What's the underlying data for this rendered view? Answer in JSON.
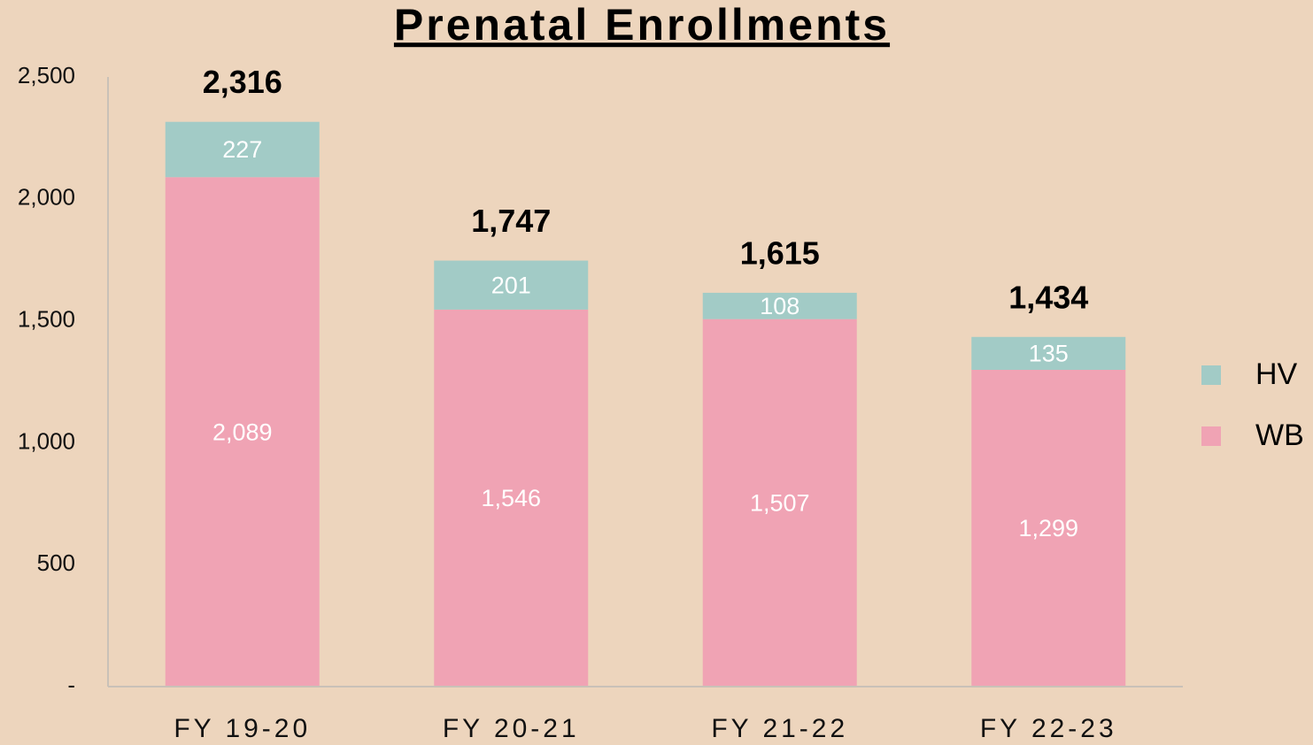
{
  "chart_data": {
    "type": "stacked_bar",
    "title": "Prenatal Enrollments",
    "categories": [
      "FY 19-20",
      "FY 20-21",
      "FY 21-22",
      "FY 22-23"
    ],
    "series": [
      {
        "name": "WB",
        "color": "#f0a3b4",
        "values": [
          2089,
          1546,
          1507,
          1299
        ],
        "value_labels": [
          "2,089",
          "1,546",
          "1,507",
          "1,299"
        ]
      },
      {
        "name": "HV",
        "color": "#a2cbc6",
        "values": [
          227,
          201,
          108,
          135
        ]
      }
    ],
    "totals": [
      2316,
      1747,
      1615,
      1434
    ],
    "total_labels": [
      "2,316",
      "1,747",
      "1,615",
      "1,434"
    ],
    "ylim": [
      0,
      2500
    ],
    "yticks": [
      {
        "value": 0,
        "label": "-"
      },
      500,
      {
        "value": 1000,
        "label": "1,000"
      },
      {
        "value": 1500,
        "label": "1,500"
      },
      {
        "value": 2000,
        "label": "2,000"
      },
      {
        "value": 2500,
        "label": "2,500"
      }
    ],
    "legend": "right"
  }
}
